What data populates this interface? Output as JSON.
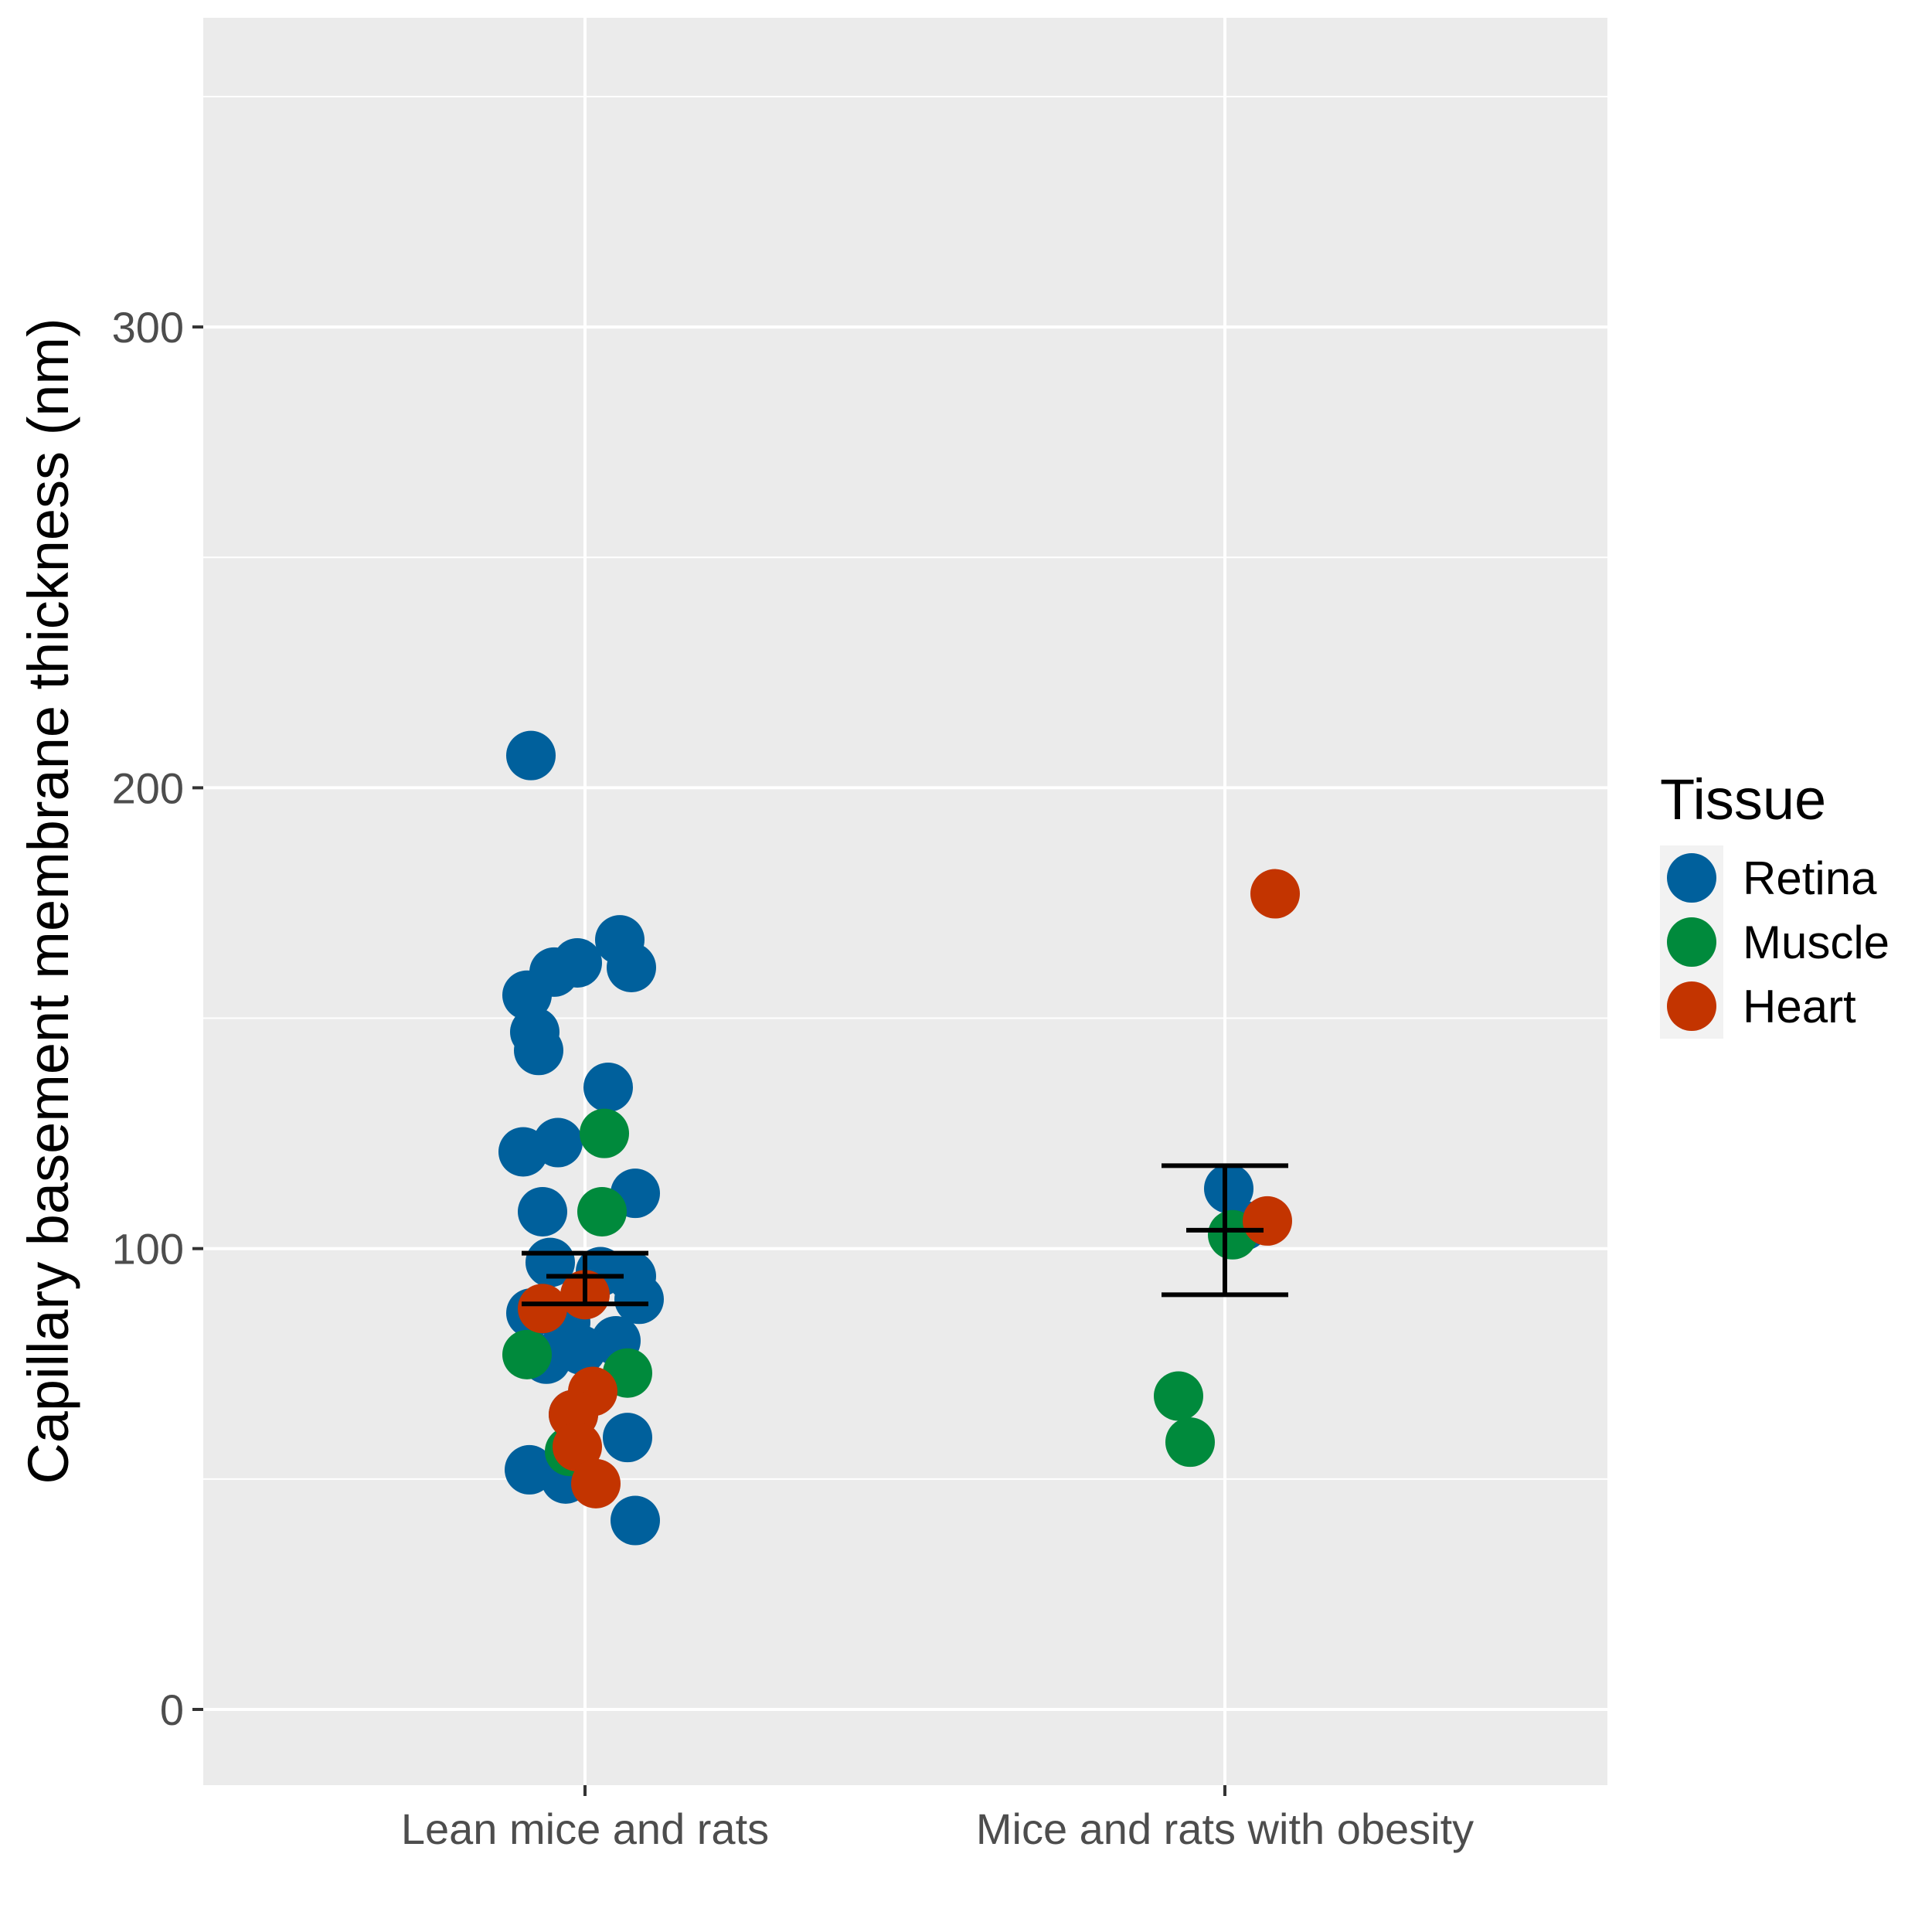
{
  "chart_data": {
    "type": "scatter",
    "title": "",
    "xlabel": "",
    "ylabel": "Capillary basement membrane thickness (nm)",
    "ylim": [
      -17,
      368
    ],
    "yticks": [
      0,
      100,
      200,
      300
    ],
    "grid": true,
    "legend_position": "right",
    "legend_title": "Tissue",
    "categories": [
      "Lean mice and rats",
      "Mice and rats with obesity"
    ],
    "series": [
      {
        "name": "Retina",
        "color": "#00609C",
        "points": [
          {
            "x": "Lean mice and rats",
            "y": 207
          },
          {
            "x": "Lean mice and rats",
            "y": 167
          },
          {
            "x": "Lean mice and rats",
            "y": 160
          },
          {
            "x": "Lean mice and rats",
            "y": 161
          },
          {
            "x": "Lean mice and rats",
            "y": 162
          },
          {
            "x": "Lean mice and rats",
            "y": 155
          },
          {
            "x": "Lean mice and rats",
            "y": 147
          },
          {
            "x": "Lean mice and rats",
            "y": 143
          },
          {
            "x": "Lean mice and rats",
            "y": 135
          },
          {
            "x": "Lean mice and rats",
            "y": 123
          },
          {
            "x": "Lean mice and rats",
            "y": 121
          },
          {
            "x": "Lean mice and rats",
            "y": 112
          },
          {
            "x": "Lean mice and rats",
            "y": 108
          },
          {
            "x": "Lean mice and rats",
            "y": 97
          },
          {
            "x": "Lean mice and rats",
            "y": 95
          },
          {
            "x": "Lean mice and rats",
            "y": 94
          },
          {
            "x": "Lean mice and rats",
            "y": 89
          },
          {
            "x": "Lean mice and rats",
            "y": 86
          },
          {
            "x": "Lean mice and rats",
            "y": 84
          },
          {
            "x": "Lean mice and rats",
            "y": 80
          },
          {
            "x": "Lean mice and rats",
            "y": 78
          },
          {
            "x": "Lean mice and rats",
            "y": 76
          },
          {
            "x": "Lean mice and rats",
            "y": 64
          },
          {
            "x": "Lean mice and rats",
            "y": 59
          },
          {
            "x": "Lean mice and rats",
            "y": 52
          },
          {
            "x": "Lean mice and rats",
            "y": 50
          },
          {
            "x": "Lean mice and rats",
            "y": 41
          },
          {
            "x": "Mice and rats with obesity",
            "y": 113
          },
          {
            "x": "Mice and rats with obesity",
            "y": 105
          }
        ]
      },
      {
        "name": "Muscle",
        "color": "#008A3C",
        "points": [
          {
            "x": "Lean mice and rats",
            "y": 125
          },
          {
            "x": "Lean mice and rats",
            "y": 108
          },
          {
            "x": "Lean mice and rats",
            "y": 77
          },
          {
            "x": "Lean mice and rats",
            "y": 73
          },
          {
            "x": "Lean mice and rats",
            "y": 56
          },
          {
            "x": "Mice and rats with obesity",
            "y": 103
          },
          {
            "x": "Mice and rats with obesity",
            "y": 68
          },
          {
            "x": "Mice and rats with obesity",
            "y": 58
          }
        ]
      },
      {
        "name": "Heart",
        "color": "#C33400",
        "points": [
          {
            "x": "Lean mice and rats",
            "y": 90
          },
          {
            "x": "Lean mice and rats",
            "y": 87
          },
          {
            "x": "Lean mice and rats",
            "y": 69
          },
          {
            "x": "Lean mice and rats",
            "y": 64
          },
          {
            "x": "Lean mice and rats",
            "y": 57
          },
          {
            "x": "Lean mice and rats",
            "y": 49
          },
          {
            "x": "Mice and rats with obesity",
            "y": 177
          },
          {
            "x": "Mice and rats with obesity",
            "y": 106
          }
        ]
      }
    ],
    "summary": [
      {
        "x": "Lean mice and rats",
        "mean": 94,
        "lower": 88,
        "upper": 99
      },
      {
        "x": "Mice and rats with obesity",
        "mean": 104,
        "lower": 90,
        "upper": 118
      }
    ]
  }
}
